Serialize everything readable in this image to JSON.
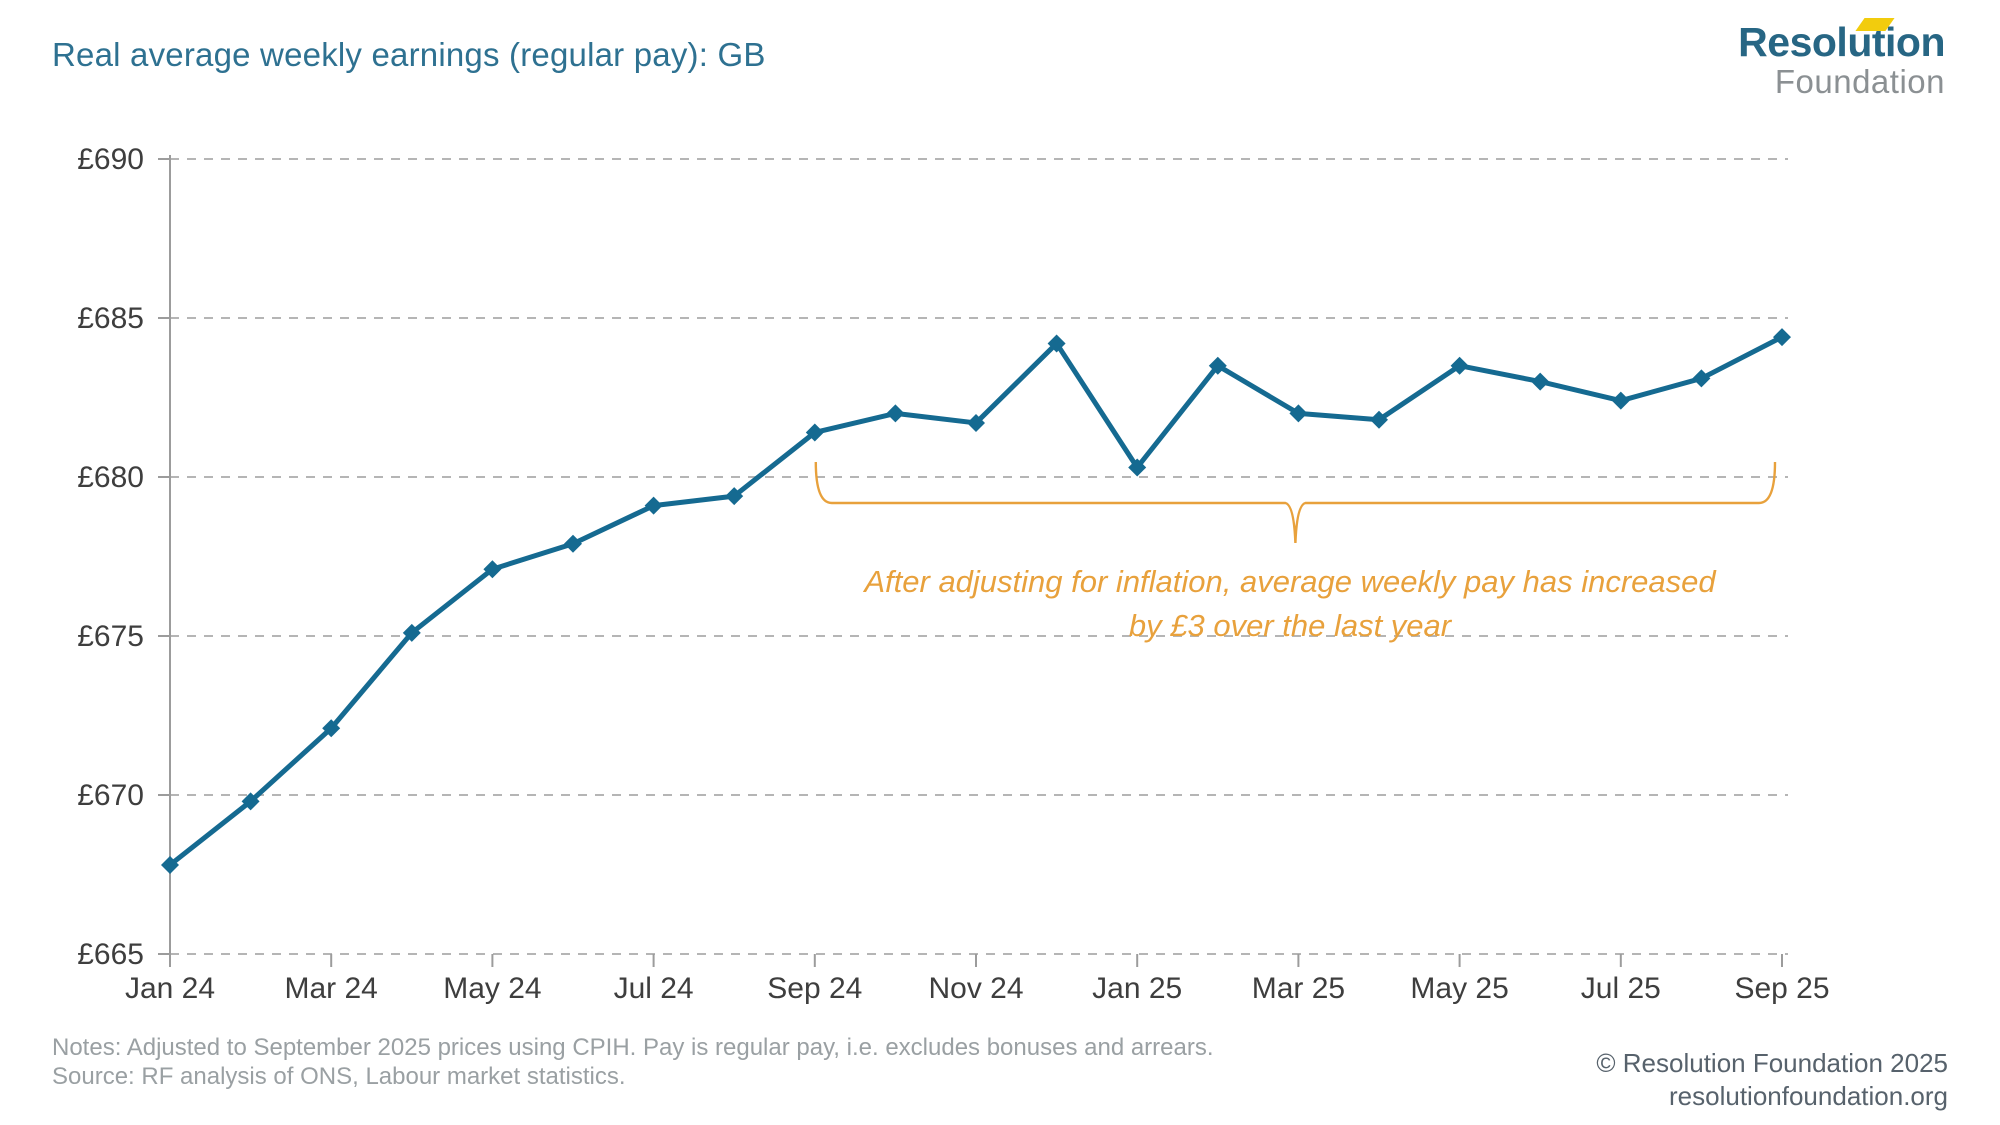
{
  "header": {
    "title": "Real average weekly earnings (regular pay): GB",
    "logo": {
      "line1": "Resolution",
      "line2": "Foundation"
    }
  },
  "chart_data": {
    "type": "line",
    "title": "Real average weekly earnings (regular pay): GB",
    "x": [
      "Jan 24",
      "Feb 24",
      "Mar 24",
      "Apr 24",
      "May 24",
      "Jun 24",
      "Jul 24",
      "Aug 24",
      "Sep 24",
      "Oct 24",
      "Nov 24",
      "Dec 24",
      "Jan 25",
      "Feb 25",
      "Mar 25",
      "Apr 25",
      "May 25",
      "Jun 25",
      "Jul 25",
      "Aug 25",
      "Sep 25"
    ],
    "values": [
      667.8,
      669.8,
      672.1,
      675.1,
      677.1,
      677.9,
      679.1,
      679.4,
      681.4,
      682.0,
      681.7,
      684.2,
      680.3,
      683.5,
      682.0,
      681.8,
      683.5,
      683.0,
      682.4,
      683.1,
      684.4
    ],
    "x_tick_labels": [
      "Jan 24",
      "Mar 24",
      "May 24",
      "Jul 24",
      "Sep 24",
      "Nov 24",
      "Jan 25",
      "Mar 25",
      "May 25",
      "Jul 25",
      "Sep 25"
    ],
    "x_tick_every": 2,
    "y_ticks": [
      665,
      670,
      675,
      680,
      685,
      690
    ],
    "y_tick_prefix": "£",
    "ylim": [
      665,
      690
    ],
    "grid": "horizontal-dashed",
    "legend": "none",
    "line_color": "#156a91",
    "marker": "diamond",
    "grid_color": "#b5b5b5",
    "axis_color": "#9c9c9c",
    "tick_label_color": "#3e3e3e",
    "annotation": {
      "text_line1": "After adjusting for inflation, average weekly pay has increased",
      "text_line2": "by £3 over the last  year",
      "color": "#e8a13c",
      "bracket_from": "Sep 24",
      "bracket_to": "Sep 25"
    }
  },
  "footer": {
    "notes": "Notes: Adjusted to September 2025 prices using CPIH. Pay is regular pay, i.e. excludes bonuses and arrears.",
    "source": "Source: RF analysis of ONS, Labour market statistics.",
    "copyright": "© Resolution Foundation 2025",
    "website": "resolutionfoundation.org"
  }
}
